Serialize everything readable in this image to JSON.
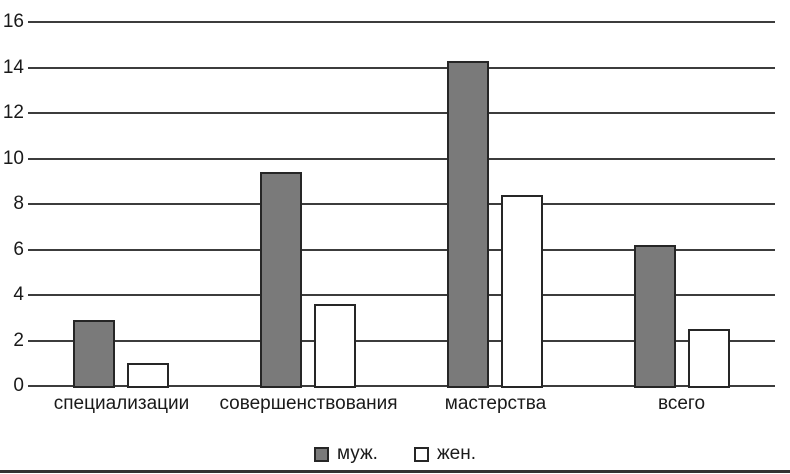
{
  "chart_data": {
    "type": "bar",
    "categories": [
      "специализации",
      "совершенствования",
      "мастерства",
      "всего"
    ],
    "series": [
      {
        "name": "муж.",
        "values": [
          2.9,
          9.4,
          14.3,
          6.2
        ],
        "fill": "#7a7a7a"
      },
      {
        "name": "жен.",
        "values": [
          1.0,
          3.6,
          8.4,
          2.5
        ],
        "fill": "#ffffff"
      }
    ],
    "ylim": [
      0,
      16
    ],
    "ytick_step": 2,
    "ytick_labels": [
      "0",
      "2",
      "4",
      "6",
      "8",
      "10",
      "12",
      "14",
      "16"
    ],
    "grid": "horizontal-only",
    "legend_position": "bottom-center",
    "colors": {
      "bar_border": "#262626",
      "gridline": "#3c3c3c",
      "text": "#1a1a1a",
      "background": "#ffffff",
      "bottom_rule": "#323232"
    }
  }
}
